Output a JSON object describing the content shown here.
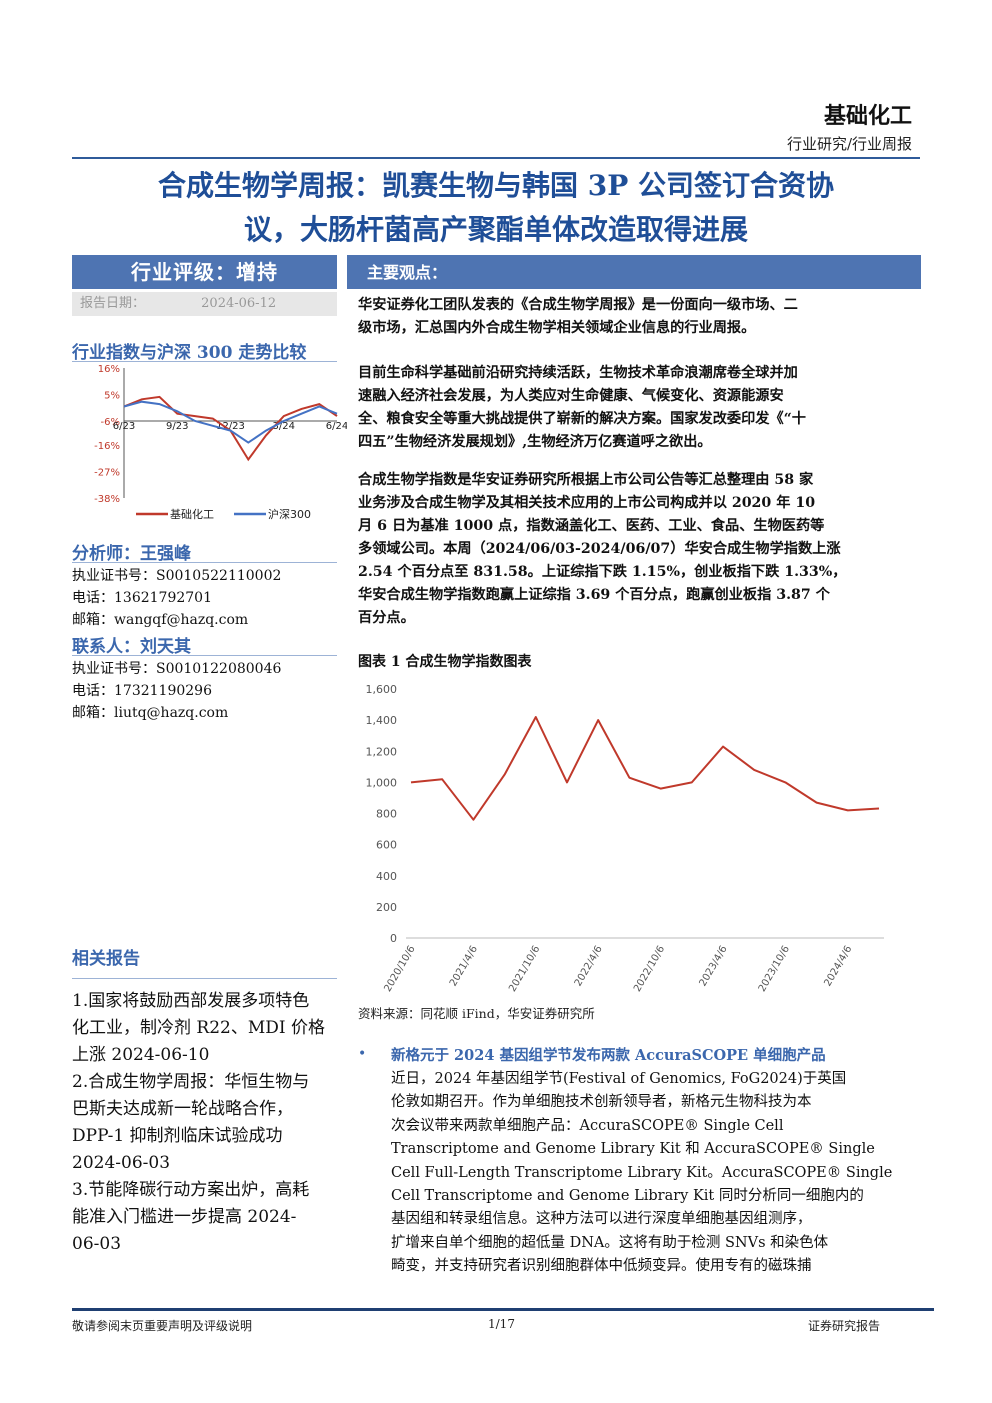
{
  "header": {
    "sector": "基础化工",
    "subtitle": "行业研究/行业周报"
  },
  "title": {
    "line1": "合成生物学周报：凯赛生物与韩国 3P 公司签订合资协",
    "line2": "议，大肠杆菌高产聚酯单体改造取得进展"
  },
  "left": {
    "rating": "行业评级：增持",
    "date_label": "报告日期：",
    "date_value": "2024-06-12",
    "compare_title": "行业指数与沪深 300 走势比较",
    "analyst_title": "分析师：王强峰",
    "analyst_lines": [
      "执业证书号：S0010522110002",
      "电话：13621792701",
      "邮箱：wangqf@hazq.com"
    ],
    "contact_title": "联系人：刘天其",
    "contact_lines": [
      "执业证书号：S0010122080046",
      "电话：17321190296",
      "邮箱：liutq@hazq.com"
    ],
    "related_title": "相关报告",
    "related_lines": [
      "1.国家将鼓励西部发展多项特色",
      "化工业，制冷剂 R22、MDI 价格",
      "上涨 2024-06-10",
      "2.合成生物学周报：华恒生物与",
      "巴斯夫达成新一轮战略合作，",
      "DPP-1 抑制剂临床试验成功",
      "2024-06-03",
      "3.节能降碳行动方案出炉，高耗",
      "能准入门槛进一步提高 2024-",
      "06-03"
    ]
  },
  "main": {
    "heading": "主要观点：",
    "p1": [
      "华安证券化工团队发表的《合成生物学周报》是一份面向一级市场、二",
      "级市场，汇总国内外合成生物学相关领域企业信息的行业周报。"
    ],
    "p2": [
      "目前生命科学基础前沿研究持续活跃，生物技术革命浪潮席卷全球并加",
      "速融入经济社会发展，为人类应对生命健康、气候变化、资源能源安",
      "全、粮食安全等重大挑战提供了崭新的解决方案。国家发改委印发《“十",
      "四五”生物经济发展规划》,生物经济万亿赛道呼之欲出。"
    ],
    "p3": [
      "合成生物学指数是华安证券研究所根据上市公司公告等汇总整理由 58 家",
      "业务涉及合成生物学及其相关技术应用的上市公司构成并以 2020 年 10",
      "月 6 日为基准 1000 点，指数涵盖化工、医药、工业、食品、生物医药等",
      "多领域公司。本周（2024/06/03-2024/06/07）华安合成生物学指数上涨",
      "2.54 个百分点至 831.58。上证综指下跌 1.15%，创业板指下跌 1.33%，",
      "华安合成生物学指数跑赢上证综指 3.69 个百分点，跑赢创业板指 3.87 个",
      "百分点。"
    ],
    "figure_title": "图表 1 合成生物学指数图表",
    "source": "资料来源：同花顺 iFind，华安证券研究所",
    "bullet_title": "新格元于 2024 基因组学节发布两款 AccuraSCOPE 单细胞产品",
    "bullet_lines": [
      "近日，2024 年基因组学节(Festival of Genomics, FoG2024)于英国",
      "伦敦如期召开。作为单细胞技术创新领导者，新格元生物科技为本",
      "次会议带来两款单细胞产品：AccuraSCOPE® Single Cell",
      "Transcriptome and Genome Library Kit 和 AccuraSCOPE® Single",
      "Cell Full-Length Transcriptome Library Kit。AccuraSCOPE® Single",
      "Cell Transcriptome and Genome Library Kit 同时分析同一细胞内的",
      "基因组和转录组信息。这种方法可以进行深度单细胞基因组测序，",
      "扩增来自单个细胞的超低量 DNA。这将有助于检测 SNVs 和染色体",
      "畸变，并支持研究者识别细胞群体中低频变异。使用专有的磁珠捕"
    ]
  },
  "footer": {
    "left": "敬请参阅末页重要声明及评级说明",
    "center": "1/17",
    "right": "证券研究报告"
  },
  "colors": {
    "accent": "#1f4e97",
    "bar": "#4e74b2",
    "sector_line": "#c0392b",
    "index_line": "#4472c4"
  },
  "chart_data": [
    {
      "type": "line",
      "title": "行业指数与沪深 300 走势比较",
      "x": [
        "6/23",
        "7/23",
        "8/23",
        "9/23",
        "10/23",
        "11/23",
        "12/23",
        "1/24",
        "2/24",
        "3/24",
        "4/24",
        "5/24",
        "6/24"
      ],
      "x_tick_labels": [
        "6/23",
        "9/23",
        "12/23",
        "3/24",
        "6/24"
      ],
      "y_ticks": [
        "16%",
        "5%",
        "-6%",
        "-16%",
        "-27%",
        "-38%"
      ],
      "ylim": [
        -38,
        16
      ],
      "legend_position": "bottom",
      "series": [
        {
          "name": "基础化工",
          "values": [
            0,
            3,
            4,
            -3,
            -4,
            -5,
            -10,
            -22,
            -12,
            -4,
            -1,
            1,
            -4
          ]
        },
        {
          "name": "沪深300",
          "values": [
            0,
            2,
            1,
            -2,
            -6,
            -8,
            -10,
            -15,
            -10,
            -6,
            -3,
            0,
            -3
          ]
        }
      ]
    },
    {
      "type": "line",
      "title": "图表 1 合成生物学指数图表",
      "x": [
        "2020/10/6",
        "2021/1/6",
        "2021/4/6",
        "2021/7/6",
        "2021/10/6",
        "2022/1/6",
        "2022/4/6",
        "2022/7/6",
        "2022/10/6",
        "2023/1/6",
        "2023/4/6",
        "2023/7/6",
        "2023/10/6",
        "2024/1/6",
        "2024/4/6",
        "2024/6/7"
      ],
      "x_tick_labels": [
        "2020/10/6",
        "2021/4/6",
        "2021/10/6",
        "2022/4/6",
        "2022/10/6",
        "2023/4/6",
        "2023/10/6",
        "2024/4/6"
      ],
      "y_ticks": [
        "0",
        "200",
        "400",
        "600",
        "800",
        "1,000",
        "1,200",
        "1,400",
        "1,600"
      ],
      "ylim": [
        0,
        1600
      ],
      "series": [
        {
          "name": "",
          "values": [
            1000,
            1020,
            760,
            1050,
            1420,
            1000,
            1400,
            1030,
            960,
            1000,
            1230,
            1080,
            1000,
            870,
            820,
            832
          ]
        }
      ]
    }
  ]
}
